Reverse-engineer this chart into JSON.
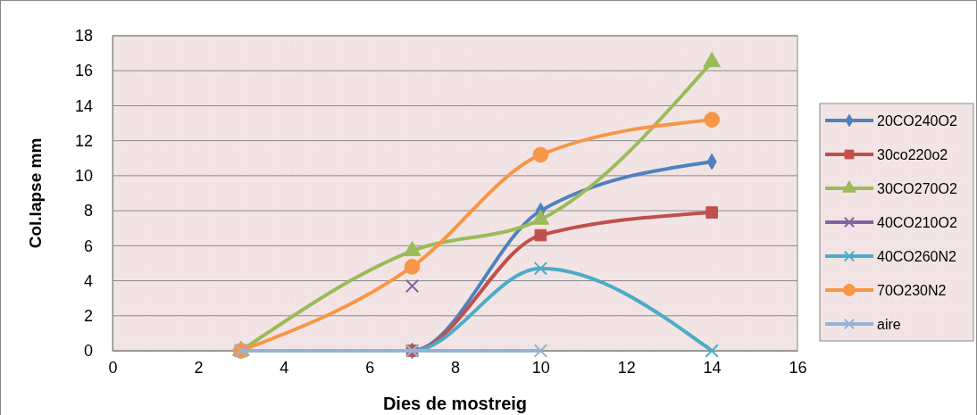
{
  "chart_data": {
    "type": "line",
    "xlabel": "Dies de mostreig",
    "ylabel": "Col.lapse mm",
    "xlim": [
      0,
      16
    ],
    "xticks": [
      0,
      2,
      4,
      6,
      8,
      10,
      12,
      14,
      16
    ],
    "ylim": [
      0,
      18
    ],
    "yticks": [
      0,
      2,
      4,
      6,
      8,
      10,
      12,
      14,
      16,
      18
    ],
    "grid": "y",
    "legend": "right",
    "series": [
      {
        "name": "20CO240O2",
        "color": "#4f81bd",
        "marker": "diamond",
        "x": [
          3,
          7,
          10,
          14
        ],
        "values": [
          0,
          0,
          8,
          10.8
        ]
      },
      {
        "name": "30co220o2",
        "color": "#c0504d",
        "marker": "square",
        "x": [
          3,
          7,
          10,
          14
        ],
        "values": [
          0,
          0,
          6.6,
          7.9
        ]
      },
      {
        "name": "30CO270O2",
        "color": "#9bbb59",
        "marker": "triangle",
        "x": [
          3,
          7,
          10,
          14
        ],
        "values": [
          0,
          5.7,
          7.5,
          16.5
        ]
      },
      {
        "name": "40CO210O2",
        "color": "#8064a2",
        "marker": "cross",
        "type": "scatter",
        "x": [
          3,
          7
        ],
        "values": [
          0,
          3.7
        ]
      },
      {
        "name": "40CO260N2",
        "color": "#4bacc6",
        "marker": "cross",
        "x": [
          3,
          7,
          10,
          14
        ],
        "values": [
          0,
          0,
          4.7,
          0
        ]
      },
      {
        "name": "70O230N2",
        "color": "#f79646",
        "marker": "circle",
        "x": [
          3,
          7,
          10,
          14
        ],
        "values": [
          0,
          4.8,
          11.2,
          13.2
        ]
      },
      {
        "name": "aire",
        "color": "#95b3d7",
        "marker": "cross",
        "x": [
          3,
          7,
          10
        ],
        "values": [
          0,
          0,
          0
        ]
      }
    ]
  }
}
